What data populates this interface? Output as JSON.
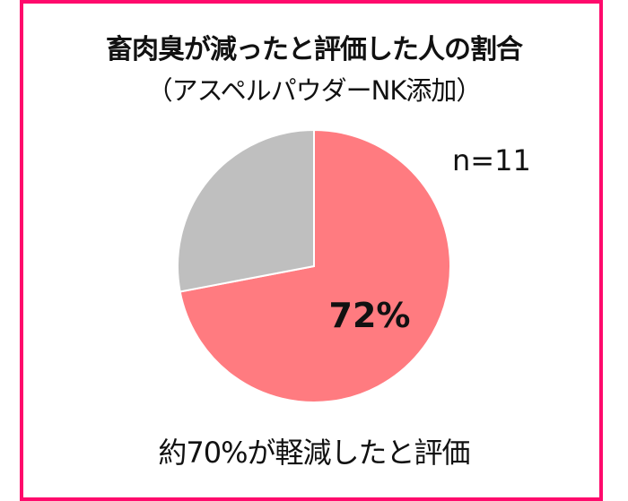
{
  "chart_data": {
    "type": "pie",
    "title": "畜肉臭が減ったと評価した人の割合",
    "subtitle": "（アスペルパウダーNK添加）",
    "annotation_n": "n=11",
    "slices": [
      {
        "value": 72,
        "label": "72%",
        "color": "#ff7b80"
      },
      {
        "value": 28,
        "label": "",
        "color": "#bfbfbf"
      }
    ],
    "caption": "約70%が軽減したと評価",
    "start": "top",
    "direction": "clockwise"
  },
  "frame_color": "#ff0a6c"
}
